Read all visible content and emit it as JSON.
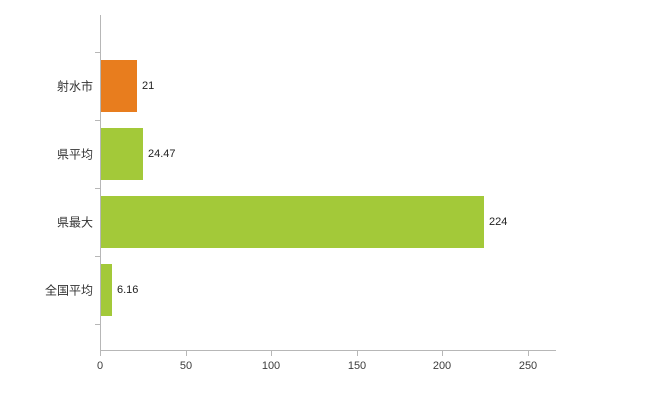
{
  "chart_data": {
    "type": "bar",
    "orientation": "horizontal",
    "title": "",
    "xlabel": "",
    "ylabel": "",
    "categories": [
      "射水市",
      "県平均",
      "県最大",
      "全国平均"
    ],
    "values": [
      21,
      24.47,
      224,
      6.16
    ],
    "value_labels": [
      "21",
      "24.47",
      "224",
      "6.16"
    ],
    "bar_colors": [
      "#e87d1e",
      "#a3c939",
      "#a3c939",
      "#a3c939"
    ],
    "xlim": [
      0,
      266
    ],
    "x_ticks": [
      0,
      50,
      100,
      150,
      200,
      250
    ],
    "grid": false,
    "legend_position": "none",
    "axis_color": "#b7b7b7",
    "tick_label_color": "#3c3c3c"
  }
}
